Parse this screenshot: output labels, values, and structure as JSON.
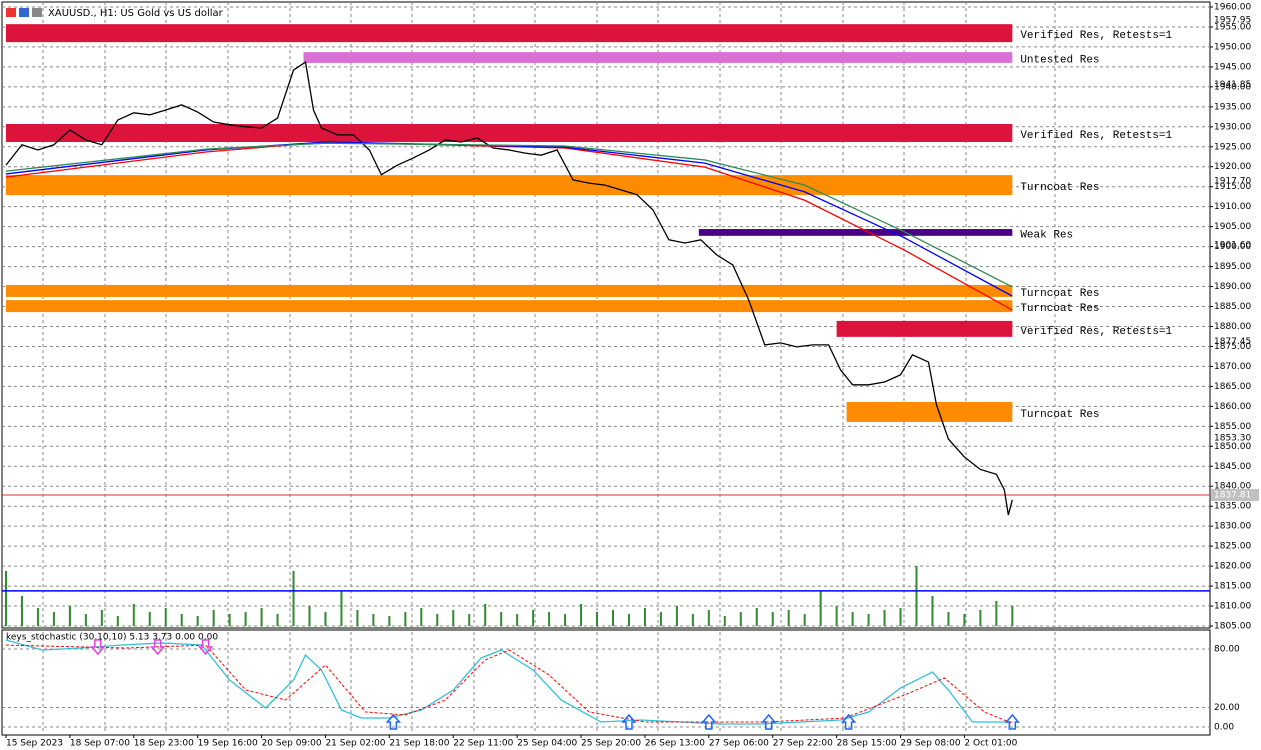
{
  "chart_data": {
    "type": "line",
    "title": "XAUUSD., H1: US Gold vs US dollar",
    "ylim": [
      1805,
      1960
    ],
    "yticks": [
      {
        "value": 1960,
        "label": "1960.00"
      },
      {
        "value": 1955,
        "label": "1955.00"
      },
      {
        "value": 1950,
        "label": "1950.00"
      },
      {
        "value": 1945,
        "label": "1945.00"
      },
      {
        "value": 1940,
        "label": "1940.00"
      },
      {
        "value": 1935,
        "label": "1935.00"
      },
      {
        "value": 1930,
        "label": "1930.00"
      },
      {
        "value": 1925,
        "label": "1925.00"
      },
      {
        "value": 1920,
        "label": "1920.00"
      },
      {
        "value": 1915,
        "label": "1915.00"
      },
      {
        "value": 1910,
        "label": "1910.00"
      },
      {
        "value": 1905,
        "label": "1905.00"
      },
      {
        "value": 1900,
        "label": "1900.00"
      },
      {
        "value": 1895,
        "label": "1895.00"
      },
      {
        "value": 1890,
        "label": "1890.00"
      },
      {
        "value": 1885,
        "label": "1885.00"
      },
      {
        "value": 1880,
        "label": "1880.00"
      },
      {
        "value": 1875,
        "label": "1875.00"
      },
      {
        "value": 1870,
        "label": "1870.00"
      },
      {
        "value": 1865,
        "label": "1865.00"
      },
      {
        "value": 1860,
        "label": "1860.00"
      },
      {
        "value": 1855,
        "label": "1855.00"
      },
      {
        "value": 1850,
        "label": "1850.00"
      },
      {
        "value": 1845,
        "label": "1845.00"
      },
      {
        "value": 1840,
        "label": "1840.00"
      },
      {
        "value": 1835,
        "label": "1835.00"
      },
      {
        "value": 1830,
        "label": "1830.00"
      },
      {
        "value": 1825,
        "label": "1825.00"
      },
      {
        "value": 1820,
        "label": "1820.00"
      },
      {
        "value": 1815,
        "label": "1815.00"
      },
      {
        "value": 1810,
        "label": "1810.00"
      },
      {
        "value": 1805,
        "label": "1805.00"
      }
    ],
    "price_labels": [
      {
        "value": 1957.95,
        "label": "1957.95"
      },
      {
        "value": 1941.85,
        "label": "1941.85"
      },
      {
        "value": 1917.7,
        "label": "1917.70"
      },
      {
        "value": 1901.6,
        "label": "1901.60"
      },
      {
        "value": 1877.45,
        "label": "1877.45"
      },
      {
        "value": 1853.3,
        "label": "1853.30"
      }
    ],
    "current_price": {
      "value": 1837.81,
      "label": "1837.81",
      "color": "#e03030"
    },
    "hline": {
      "value": 1813.8,
      "color": "#0000ff"
    },
    "xlim": [
      -1,
      301.5
    ],
    "xticks": [
      {
        "value": 0,
        "label": "15 Sep 2023"
      },
      {
        "value": 16,
        "label": "18 Sep 07:00"
      },
      {
        "value": 32,
        "label": "18 Sep 23:00"
      },
      {
        "value": 48,
        "label": "19 Sep 16:00"
      },
      {
        "value": 64,
        "label": "20 Sep 09:00"
      },
      {
        "value": 80,
        "label": "21 Sep 02:00"
      },
      {
        "value": 96,
        "label": "21 Sep 18:00"
      },
      {
        "value": 112,
        "label": "22 Sep 11:00"
      },
      {
        "value": 128,
        "label": "25 Sep 04:00"
      },
      {
        "value": 144,
        "label": "25 Sep 20:00"
      },
      {
        "value": 160,
        "label": "26 Sep 13:00"
      },
      {
        "value": 176,
        "label": "27 Sep 06:00"
      },
      {
        "value": 192,
        "label": "27 Sep 22:00"
      },
      {
        "value": 208,
        "label": "28 Sep 15:00"
      },
      {
        "value": 224,
        "label": "29 Sep 08:00"
      },
      {
        "value": 240,
        "label": "2 Oct 01:00"
      }
    ],
    "series": [
      {
        "name": "price",
        "color": "#000000",
        "x": [
          0,
          4,
          8,
          12,
          16,
          20,
          24,
          28,
          32,
          36,
          40,
          44,
          48,
          52,
          56,
          60,
          64,
          68,
          72,
          75,
          77,
          79,
          83,
          87,
          91,
          94,
          98,
          102,
          106,
          110,
          114,
          118,
          122,
          126,
          130,
          134,
          138,
          142,
          146,
          150,
          154,
          158,
          162,
          166,
          170,
          174,
          178,
          182,
          186,
          190,
          194,
          198,
          202,
          206,
          209,
          212,
          216,
          220,
          224,
          227,
          231,
          233,
          236,
          240,
          244,
          248,
          250,
          251,
          252
        ],
        "values": [
          1920.4,
          1925.5,
          1924.2,
          1925.5,
          1929.2,
          1926.7,
          1925.5,
          1931.7,
          1933.5,
          1933,
          1934.2,
          1935.5,
          1933.7,
          1931.2,
          1930.5,
          1930,
          1929.7,
          1932.2,
          1944.2,
          1946.2,
          1934.2,
          1929.7,
          1928,
          1928,
          1924.2,
          1918,
          1920.4,
          1922.2,
          1924.2,
          1926.7,
          1926.2,
          1927.2,
          1924.7,
          1924.2,
          1923.4,
          1922.9,
          1924.2,
          1916.7,
          1915.9,
          1915.4,
          1914.2,
          1913,
          1909.2,
          1901.7,
          1900.9,
          1901.7,
          1897.9,
          1895.4,
          1886.6,
          1875.4,
          1875.9,
          1874.9,
          1875.4,
          1875.4,
          1869.1,
          1865.4,
          1865.4,
          1866.1,
          1867.9,
          1872.9,
          1871.1,
          1860.4,
          1851.8,
          1847.3,
          1844.2,
          1843,
          1839.1,
          1832.8,
          1836.6
        ]
      },
      {
        "name": "ma-red",
        "color": "#ff0000",
        "x": [
          0,
          50,
          80,
          140,
          175,
          200,
          225,
          252
        ],
        "values": [
          1917.4,
          1923.7,
          1926.2,
          1924.7,
          1919.9,
          1911.6,
          1899.1,
          1884.1
        ]
      },
      {
        "name": "ma-blue",
        "color": "#0000ff",
        "x": [
          0,
          50,
          80,
          140,
          175,
          200,
          225,
          252
        ],
        "values": [
          1918.2,
          1924.2,
          1926.2,
          1924.9,
          1920.9,
          1913.7,
          1902.2,
          1887.6
        ]
      },
      {
        "name": "ma-green",
        "color": "#2e8b57",
        "x": [
          0,
          50,
          80,
          140,
          175,
          200,
          225,
          252
        ],
        "values": [
          1918.9,
          1924.4,
          1925.9,
          1925.2,
          1921.7,
          1915.4,
          1903.7,
          1889.9
        ]
      }
    ],
    "zones": [
      {
        "label": "Verified Res, Retests=1",
        "color": "#dc143c",
        "from": 0,
        "to": 252,
        "low": 1951.2,
        "high": 1955.7
      },
      {
        "label": "Untested Res",
        "color": "#da70d6",
        "from": 74.5,
        "to": 252,
        "low": 1946,
        "high": 1948.7
      },
      {
        "label": "Verified Res, Retests=1",
        "color": "#dc143c",
        "from": 0,
        "to": 252,
        "low": 1926.2,
        "high": 1930.7
      },
      {
        "label": "Turncoat Res",
        "color": "#ff8c00",
        "from": 0,
        "to": 252,
        "low": 1912.9,
        "high": 1917.9
      },
      {
        "label": "Weak Res",
        "color": "#4b0082",
        "from": 173.5,
        "to": 252,
        "low": 1902.7,
        "high": 1904.4
      },
      {
        "label": "Turncoat Res",
        "color": "#ff8c00",
        "from": 0,
        "to": 252,
        "low": 1887.4,
        "high": 1890.4
      },
      {
        "label": "Turncoat Res",
        "color": "#ff8c00",
        "from": 0,
        "to": 252,
        "low": 1883.6,
        "high": 1886.6
      },
      {
        "label": "Verified Res, Retests=1",
        "color": "#dc143c",
        "from": 208,
        "to": 252,
        "low": 1877.4,
        "high": 1881.4
      },
      {
        "label": "Turncoat Res",
        "color": "#ff8c00",
        "from": 210.5,
        "to": 252,
        "low": 1856.1,
        "high": 1861.1
      }
    ],
    "volume": {
      "color": "#2e8b2e",
      "values": [
        55,
        30,
        18,
        14,
        20,
        12,
        16,
        10,
        22,
        14,
        18,
        12,
        10,
        16,
        12,
        14,
        18,
        12,
        55,
        20,
        14,
        35,
        16,
        12,
        10,
        14,
        18,
        12,
        16,
        12,
        22,
        14,
        12,
        16,
        14,
        12,
        22,
        14,
        16,
        12,
        18,
        14,
        20,
        12,
        16,
        10,
        14,
        18,
        14,
        16,
        12,
        35,
        20,
        14,
        12,
        16,
        18,
        60,
        30,
        14,
        12,
        16,
        25,
        20
      ],
      "step": 4
    },
    "indicator": {
      "title": "keys_stochastic (30,10,10) 5.13 3.73 0.00 0.00",
      "ylim": [
        0,
        100
      ],
      "yticks": [
        {
          "value": 80,
          "label": "80.00"
        },
        {
          "value": 20,
          "label": "20.00"
        },
        {
          "value": 0,
          "label": "0.00"
        }
      ],
      "series": [
        {
          "name": "main",
          "color": "#30c0d8",
          "x": [
            0,
            9,
            19,
            29,
            39,
            49,
            56,
            65,
            72,
            75,
            79,
            84,
            89,
            96,
            104,
            112,
            119,
            124,
            132,
            139,
            149,
            159,
            169,
            179,
            189,
            199,
            209,
            216,
            224,
            232,
            236,
            242,
            252
          ],
          "values": [
            89.2,
            79,
            81,
            84.1,
            86.2,
            84.1,
            48.2,
            19.5,
            48.2,
            73.8,
            58.5,
            17.4,
            9.2,
            9.2,
            17.4,
            37.9,
            70.8,
            79,
            58.5,
            27.7,
            5.1,
            7.2,
            5.1,
            3.1,
            3.1,
            5.1,
            7.2,
            15.4,
            40,
            56.4,
            37.9,
            5.1,
            5.13
          ]
        },
        {
          "name": "signal",
          "color": "#ff0000",
          "dashed": true,
          "x": [
            0,
            30,
            50,
            60,
            70,
            80,
            90,
            100,
            110,
            120,
            126,
            136,
            146,
            160,
            190,
            210,
            225,
            235,
            245,
            252
          ],
          "values": [
            84,
            81,
            84,
            38,
            27.7,
            63.6,
            15.4,
            12.3,
            27.7,
            68.7,
            79,
            53.3,
            15.4,
            5.1,
            5.1,
            9.2,
            32.8,
            50.3,
            15.4,
            3.73
          ]
        }
      ],
      "buy_signals": [
        97,
        156,
        176,
        191,
        211,
        252
      ],
      "buy_color": "#1e64ff",
      "sell_signals": [
        23,
        38,
        50
      ],
      "sell_color": "#e040e0"
    }
  }
}
